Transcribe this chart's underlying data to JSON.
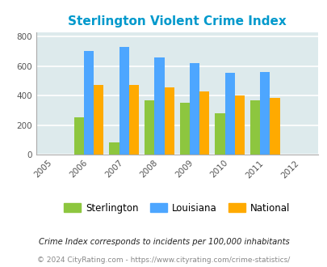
{
  "title": "Sterlington Violent Crime Index",
  "years": [
    2006,
    2007,
    2008,
    2009,
    2010,
    2011
  ],
  "xlim": [
    2004.5,
    2012.5
  ],
  "x_ticks": [
    2005,
    2006,
    2007,
    2008,
    2009,
    2010,
    2011,
    2012
  ],
  "sterlington": [
    255,
    85,
    370,
    350,
    280,
    370
  ],
  "louisiana": [
    700,
    730,
    660,
    618,
    555,
    558
  ],
  "national": [
    475,
    470,
    455,
    427,
    402,
    387
  ],
  "ylim": [
    0,
    830
  ],
  "yticks": [
    0,
    200,
    400,
    600,
    800
  ],
  "color_sterlington": "#8dc63f",
  "color_louisiana": "#4da6ff",
  "color_national": "#ffaa00",
  "plot_bg_color": "#ddeaec",
  "fig_bg_color": "#ffffff",
  "title_color": "#0099cc",
  "footnote1": "Crime Index corresponds to incidents per 100,000 inhabitants",
  "footnote2": "© 2024 CityRating.com - https://www.cityrating.com/crime-statistics/",
  "legend_labels": [
    "Sterlington",
    "Louisiana",
    "National"
  ],
  "bar_width": 0.28,
  "grid_color": "#ffffff",
  "tick_label_color": "#555555",
  "footnote1_color": "#222222",
  "footnote2_color": "#888888",
  "axis_line_color": "#aaaaaa"
}
